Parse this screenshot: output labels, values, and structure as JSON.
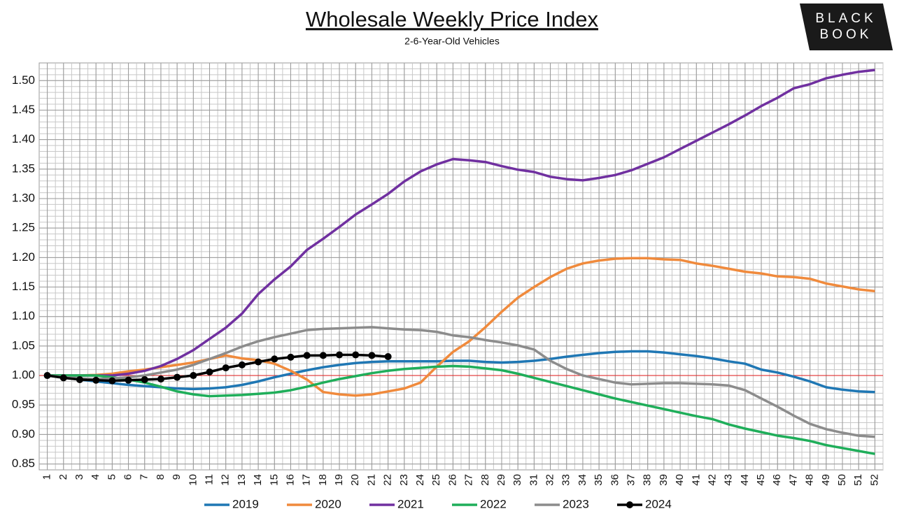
{
  "chart_data": {
    "type": "line",
    "title": "Wholesale Weekly Price Index",
    "subtitle": "2-6-Year-Old Vehicles",
    "logo": [
      "BLACK",
      "BOOK"
    ],
    "x": [
      1,
      2,
      3,
      4,
      5,
      6,
      7,
      8,
      9,
      10,
      11,
      12,
      13,
      14,
      15,
      16,
      17,
      18,
      19,
      20,
      21,
      22,
      23,
      24,
      25,
      26,
      27,
      28,
      29,
      30,
      31,
      32,
      33,
      34,
      35,
      36,
      37,
      38,
      39,
      40,
      41,
      42,
      43,
      44,
      45,
      46,
      47,
      48,
      49,
      50,
      51,
      52
    ],
    "xlim": [
      0.5,
      52.5
    ],
    "xticks": [
      1,
      2,
      3,
      4,
      5,
      6,
      7,
      8,
      9,
      10,
      11,
      12,
      13,
      14,
      15,
      16,
      17,
      18,
      19,
      20,
      21,
      22,
      23,
      24,
      25,
      26,
      27,
      28,
      29,
      30,
      31,
      32,
      33,
      34,
      35,
      36,
      37,
      38,
      39,
      40,
      41,
      42,
      43,
      44,
      45,
      46,
      47,
      48,
      49,
      50,
      51,
      52
    ],
    "ylim": [
      0.84,
      1.53
    ],
    "yticks": [
      {
        "value": 0.85,
        "label": "0.85"
      },
      {
        "value": 0.9,
        "label": "0.90"
      },
      {
        "value": 0.95,
        "label": "0.95"
      },
      {
        "value": 1.0,
        "label": "1.00"
      },
      {
        "value": 1.05,
        "label": "1.05"
      },
      {
        "value": 1.1,
        "label": "1.10"
      },
      {
        "value": 1.15,
        "label": "1.15"
      },
      {
        "value": 1.2,
        "label": "1.20"
      },
      {
        "value": 1.25,
        "label": "1.25"
      },
      {
        "value": 1.3,
        "label": "1.30"
      },
      {
        "value": 1.35,
        "label": "1.35"
      },
      {
        "value": 1.4,
        "label": "1.40"
      },
      {
        "value": 1.45,
        "label": "1.45"
      },
      {
        "value": 1.5,
        "label": "1.50"
      }
    ],
    "grid": true,
    "reference_line": {
      "value": 1.0,
      "color": "#e03030"
    },
    "legend": "bottom",
    "series": [
      {
        "name": "2019",
        "color": "#1f77b4",
        "values": [
          1.0,
          0.997,
          0.993,
          0.99,
          0.987,
          0.984,
          0.982,
          0.98,
          0.978,
          0.977,
          0.978,
          0.98,
          0.984,
          0.99,
          0.997,
          1.003,
          1.009,
          1.014,
          1.018,
          1.021,
          1.023,
          1.024,
          1.024,
          1.024,
          1.024,
          1.025,
          1.025,
          1.023,
          1.022,
          1.023,
          1.025,
          1.028,
          1.032,
          1.035,
          1.038,
          1.04,
          1.041,
          1.041,
          1.039,
          1.036,
          1.033,
          1.029,
          1.024,
          1.02,
          1.01,
          1.005,
          0.998,
          0.99,
          0.98,
          0.976,
          0.973,
          0.972
        ]
      },
      {
        "name": "2020",
        "color": "#f08a3c",
        "values": [
          1.0,
          1.0,
          1.0,
          1.001,
          1.003,
          1.007,
          1.01,
          1.014,
          1.018,
          1.022,
          1.028,
          1.034,
          1.029,
          1.026,
          1.02,
          1.008,
          0.993,
          0.972,
          0.968,
          0.966,
          0.968,
          0.973,
          0.978,
          0.988,
          1.015,
          1.04,
          1.058,
          1.082,
          1.108,
          1.132,
          1.15,
          1.167,
          1.181,
          1.19,
          1.195,
          1.198,
          1.199,
          1.199,
          1.197,
          1.196,
          1.19,
          1.186,
          1.181,
          1.176,
          1.173,
          1.168,
          1.167,
          1.164,
          1.156,
          1.151,
          1.146,
          1.143
        ]
      },
      {
        "name": "2021",
        "color": "#7030a0",
        "values": [
          1.0,
          1.0,
          1.0,
          1.0,
          1.0,
          1.003,
          1.008,
          1.016,
          1.028,
          1.043,
          1.062,
          1.081,
          1.105,
          1.138,
          1.163,
          1.185,
          1.213,
          1.232,
          1.252,
          1.273,
          1.29,
          1.308,
          1.329,
          1.346,
          1.358,
          1.367,
          1.365,
          1.362,
          1.355,
          1.349,
          1.345,
          1.337,
          1.333,
          1.331,
          1.335,
          1.34,
          1.348,
          1.359,
          1.37,
          1.384,
          1.398,
          1.412,
          1.426,
          1.441,
          1.457,
          1.471,
          1.487,
          1.494,
          1.504,
          1.51,
          1.515,
          1.518
        ]
      },
      {
        "name": "2022",
        "color": "#1fae5a",
        "values": [
          1.0,
          1.0,
          1.0,
          1.0,
          0.997,
          0.993,
          0.988,
          0.981,
          0.973,
          0.968,
          0.965,
          0.966,
          0.967,
          0.969,
          0.971,
          0.975,
          0.981,
          0.988,
          0.994,
          0.999,
          1.004,
          1.008,
          1.011,
          1.013,
          1.015,
          1.016,
          1.015,
          1.012,
          1.009,
          1.003,
          0.996,
          0.989,
          0.982,
          0.975,
          0.968,
          0.961,
          0.955,
          0.949,
          0.943,
          0.937,
          0.931,
          0.926,
          0.917,
          0.91,
          0.904,
          0.898,
          0.894,
          0.889,
          0.882,
          0.877,
          0.872,
          0.867
        ]
      },
      {
        "name": "2023",
        "color": "#8c8c8c",
        "values": [
          1.0,
          0.997,
          0.995,
          0.994,
          0.995,
          0.997,
          1.0,
          1.005,
          1.01,
          1.018,
          1.028,
          1.038,
          1.049,
          1.058,
          1.065,
          1.071,
          1.077,
          1.079,
          1.08,
          1.081,
          1.082,
          1.08,
          1.078,
          1.077,
          1.074,
          1.068,
          1.065,
          1.06,
          1.056,
          1.051,
          1.044,
          1.025,
          1.011,
          1.0,
          0.994,
          0.988,
          0.985,
          0.986,
          0.987,
          0.987,
          0.986,
          0.985,
          0.983,
          0.975,
          0.961,
          0.947,
          0.932,
          0.918,
          0.909,
          0.903,
          0.898,
          0.896
        ]
      },
      {
        "name": "2024",
        "color": "#000000",
        "marker": true,
        "values": [
          1.0,
          0.996,
          0.993,
          0.992,
          0.991,
          0.992,
          0.993,
          0.994,
          0.997,
          1.0,
          1.006,
          1.013,
          1.018,
          1.023,
          1.028,
          1.031,
          1.034,
          1.034,
          1.035,
          1.035,
          1.034,
          1.032,
          null,
          null,
          null,
          null,
          null,
          null,
          null,
          null,
          null,
          null,
          null,
          null,
          null,
          null,
          null,
          null,
          null,
          null,
          null,
          null,
          null,
          null,
          null,
          null,
          null,
          null,
          null,
          null,
          null,
          null
        ]
      }
    ]
  }
}
